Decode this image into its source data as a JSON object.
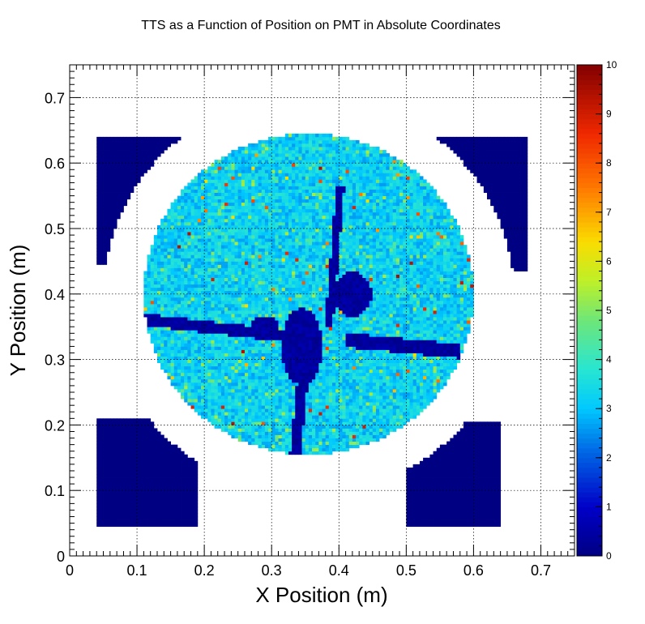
{
  "chart_data": {
    "type": "heatmap",
    "title": "TTS as a Function of Position on PMT in Absolute Coordinates",
    "xlabel": "X Position (m)",
    "ylabel": "Y Position (m)",
    "xlim": [
      0,
      0.75
    ],
    "ylim": [
      0,
      0.75
    ],
    "zlim": [
      0,
      10
    ],
    "xticks": [
      "0",
      "0.1",
      "0.2",
      "0.3",
      "0.4",
      "0.5",
      "0.6",
      "0.7"
    ],
    "yticks": [
      "0",
      "0.1",
      "0.2",
      "0.3",
      "0.4",
      "0.5",
      "0.6",
      "0.7"
    ],
    "colorbar_ticks": [
      "0",
      "1",
      "2",
      "3",
      "4",
      "5",
      "6",
      "7",
      "8",
      "9",
      "10"
    ],
    "grid": true,
    "colormap": "jet",
    "bin_size": 0.005,
    "features": {
      "pmt_disk": {
        "center": [
          0.355,
          0.4
        ],
        "radius": 0.245,
        "typical_value": 3.0
      },
      "corner_wedges_value": 0,
      "dark_cross_value": 0.1
    }
  }
}
